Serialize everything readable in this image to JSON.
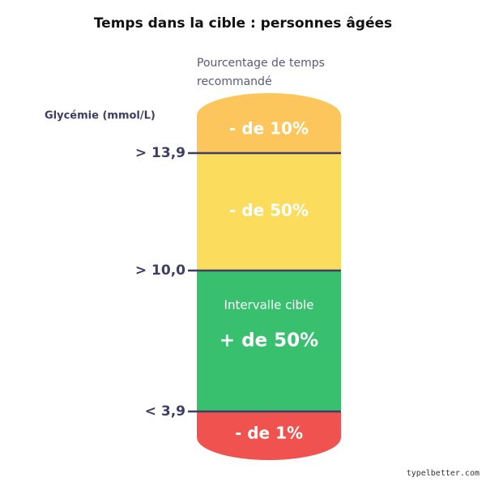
{
  "header": {
    "title": "Temps dans la cible : personnes âgées",
    "subtitle_line1": "Pourcentage de temps",
    "subtitle_line2": "recommandé"
  },
  "axis_label": "Glycémie (mmol/L)",
  "thresholds": [
    "> 13,9",
    "> 10,0",
    "< 3,9"
  ],
  "segments": [
    {
      "label": "- de 10%"
    },
    {
      "label": "- de 50%"
    },
    {
      "caption": "Intervalle cible",
      "label": "+ de 50%"
    },
    {
      "label": "- de 1%"
    }
  ],
  "watermark": "typelbetter.com"
}
